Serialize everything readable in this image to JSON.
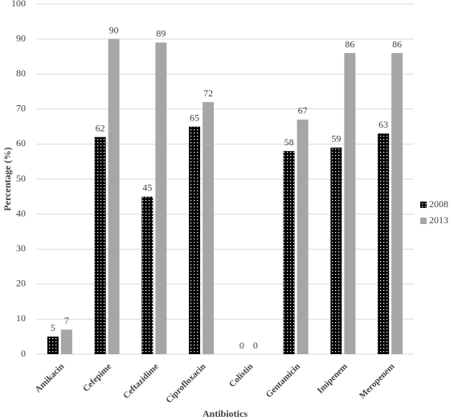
{
  "chart_data": {
    "type": "bar",
    "x_label": "Antibiotics",
    "y_label": "Percentage (%)",
    "categories": [
      "Amikacin",
      "Cefepime",
      "Ceftazidime",
      "Ciprofloxacin",
      "Colistin",
      "Gentamicin",
      "Imipenem",
      "Meropenem"
    ],
    "series": [
      {
        "name": "2008",
        "color": "#000000",
        "values": [
          5,
          62,
          45,
          65,
          0,
          58,
          59,
          63
        ]
      },
      {
        "name": "2013",
        "color": "#a6a6a6",
        "values": [
          7,
          90,
          89,
          72,
          0,
          67,
          86,
          86
        ]
      }
    ],
    "ylim": [
      0,
      100
    ],
    "yticks": [
      0,
      10,
      20,
      30,
      40,
      50,
      60,
      70,
      80,
      90,
      100
    ],
    "grid": true,
    "legend": "right"
  }
}
